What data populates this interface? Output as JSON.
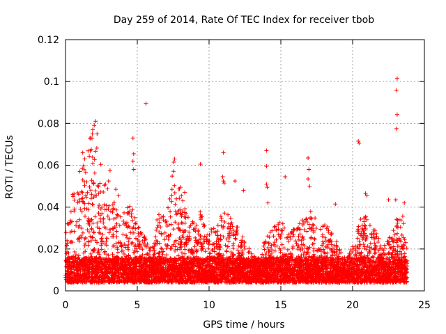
{
  "chart_data": {
    "type": "scatter",
    "title": "Day 259 of 2014, Rate Of TEC Index for receiver tbob",
    "xlabel": "GPS time / hours",
    "ylabel": "ROTI / TECUs",
    "xlim": [
      0,
      25
    ],
    "ylim": [
      0,
      0.12
    ],
    "grid": true,
    "marker": "+",
    "color": "#ff0000",
    "x_ticks": [
      {
        "value": 0,
        "label": "0"
      },
      {
        "value": 5,
        "label": "5"
      },
      {
        "value": 10,
        "label": "10"
      },
      {
        "value": 15,
        "label": "15"
      },
      {
        "value": 20,
        "label": "20"
      },
      {
        "value": 25,
        "label": "25"
      }
    ],
    "y_ticks": [
      {
        "value": 0,
        "label": "0"
      },
      {
        "value": 0.02,
        "label": "0.02"
      },
      {
        "value": 0.04,
        "label": "0.04"
      },
      {
        "value": 0.06,
        "label": "0.06"
      },
      {
        "value": 0.08,
        "label": "0.08"
      },
      {
        "value": 0.1,
        "label": "0.1"
      },
      {
        "value": 0.12,
        "label": "0.12"
      }
    ],
    "data_extent_x": [
      0,
      23.8
    ],
    "envelope": [
      [
        0.0,
        0.03
      ],
      [
        0.5,
        0.045
      ],
      [
        1.0,
        0.058
      ],
      [
        1.5,
        0.07
      ],
      [
        2.0,
        0.08
      ],
      [
        2.5,
        0.062
      ],
      [
        3.0,
        0.05
      ],
      [
        3.5,
        0.042
      ],
      [
        4.0,
        0.036
      ],
      [
        4.5,
        0.044
      ],
      [
        5.0,
        0.032
      ],
      [
        5.5,
        0.026
      ],
      [
        6.0,
        0.02
      ],
      [
        6.5,
        0.04
      ],
      [
        7.0,
        0.034
      ],
      [
        7.5,
        0.058
      ],
      [
        8.0,
        0.048
      ],
      [
        8.5,
        0.036
      ],
      [
        9.0,
        0.034
      ],
      [
        9.5,
        0.04
      ],
      [
        10.0,
        0.03
      ],
      [
        10.5,
        0.03
      ],
      [
        11.0,
        0.04
      ],
      [
        11.5,
        0.036
      ],
      [
        12.0,
        0.032
      ],
      [
        12.5,
        0.024
      ],
      [
        13.0,
        0.018
      ],
      [
        13.5,
        0.014
      ],
      [
        14.0,
        0.028
      ],
      [
        14.5,
        0.032
      ],
      [
        15.0,
        0.034
      ],
      [
        15.5,
        0.028
      ],
      [
        16.0,
        0.03
      ],
      [
        16.5,
        0.034
      ],
      [
        17.0,
        0.04
      ],
      [
        17.5,
        0.034
      ],
      [
        18.0,
        0.032
      ],
      [
        18.5,
        0.03
      ],
      [
        19.0,
        0.022
      ],
      [
        19.5,
        0.014
      ],
      [
        20.0,
        0.022
      ],
      [
        20.5,
        0.034
      ],
      [
        21.0,
        0.036
      ],
      [
        21.5,
        0.03
      ],
      [
        22.0,
        0.022
      ],
      [
        22.5,
        0.024
      ],
      [
        23.0,
        0.034
      ],
      [
        23.5,
        0.036
      ],
      [
        23.8,
        0.02
      ]
    ],
    "outliers": [
      {
        "x": 23.1,
        "y": 0.1015
      },
      {
        "x": 23.05,
        "y": 0.0958
      },
      {
        "x": 23.1,
        "y": 0.0842
      },
      {
        "x": 23.05,
        "y": 0.0775
      },
      {
        "x": 5.6,
        "y": 0.0895
      },
      {
        "x": 2.1,
        "y": 0.081
      },
      {
        "x": 2.0,
        "y": 0.079
      },
      {
        "x": 1.9,
        "y": 0.077
      },
      {
        "x": 1.7,
        "y": 0.073
      },
      {
        "x": 2.2,
        "y": 0.075
      },
      {
        "x": 4.7,
        "y": 0.073
      },
      {
        "x": 4.75,
        "y": 0.0655
      },
      {
        "x": 4.7,
        "y": 0.062
      },
      {
        "x": 4.75,
        "y": 0.058
      },
      {
        "x": 20.4,
        "y": 0.0715
      },
      {
        "x": 20.45,
        "y": 0.0705
      },
      {
        "x": 14.0,
        "y": 0.067
      },
      {
        "x": 14.0,
        "y": 0.0595
      },
      {
        "x": 14.0,
        "y": 0.051
      },
      {
        "x": 14.05,
        "y": 0.0495
      },
      {
        "x": 14.1,
        "y": 0.042
      },
      {
        "x": 11.0,
        "y": 0.066
      },
      {
        "x": 10.95,
        "y": 0.0545
      },
      {
        "x": 11.0,
        "y": 0.0525
      },
      {
        "x": 11.05,
        "y": 0.0515
      },
      {
        "x": 7.6,
        "y": 0.063
      },
      {
        "x": 7.55,
        "y": 0.0615
      },
      {
        "x": 9.4,
        "y": 0.0605
      },
      {
        "x": 16.9,
        "y": 0.0635
      },
      {
        "x": 16.95,
        "y": 0.058
      },
      {
        "x": 16.9,
        "y": 0.0535
      },
      {
        "x": 17.0,
        "y": 0.05
      },
      {
        "x": 15.3,
        "y": 0.0545
      },
      {
        "x": 11.8,
        "y": 0.0525
      },
      {
        "x": 12.4,
        "y": 0.048
      },
      {
        "x": 20.9,
        "y": 0.0465
      },
      {
        "x": 21.0,
        "y": 0.0455
      },
      {
        "x": 23.6,
        "y": 0.042
      },
      {
        "x": 23.0,
        "y": 0.0435
      },
      {
        "x": 22.5,
        "y": 0.0435
      },
      {
        "x": 3.1,
        "y": 0.0575
      },
      {
        "x": 3.0,
        "y": 0.0525
      },
      {
        "x": 1.0,
        "y": 0.057
      },
      {
        "x": 0.5,
        "y": 0.046
      },
      {
        "x": 1.2,
        "y": 0.066
      },
      {
        "x": 3.5,
        "y": 0.0485
      },
      {
        "x": 3.7,
        "y": 0.0455
      },
      {
        "x": 8.0,
        "y": 0.0495
      },
      {
        "x": 8.3,
        "y": 0.047
      },
      {
        "x": 18.8,
        "y": 0.0415
      }
    ]
  }
}
